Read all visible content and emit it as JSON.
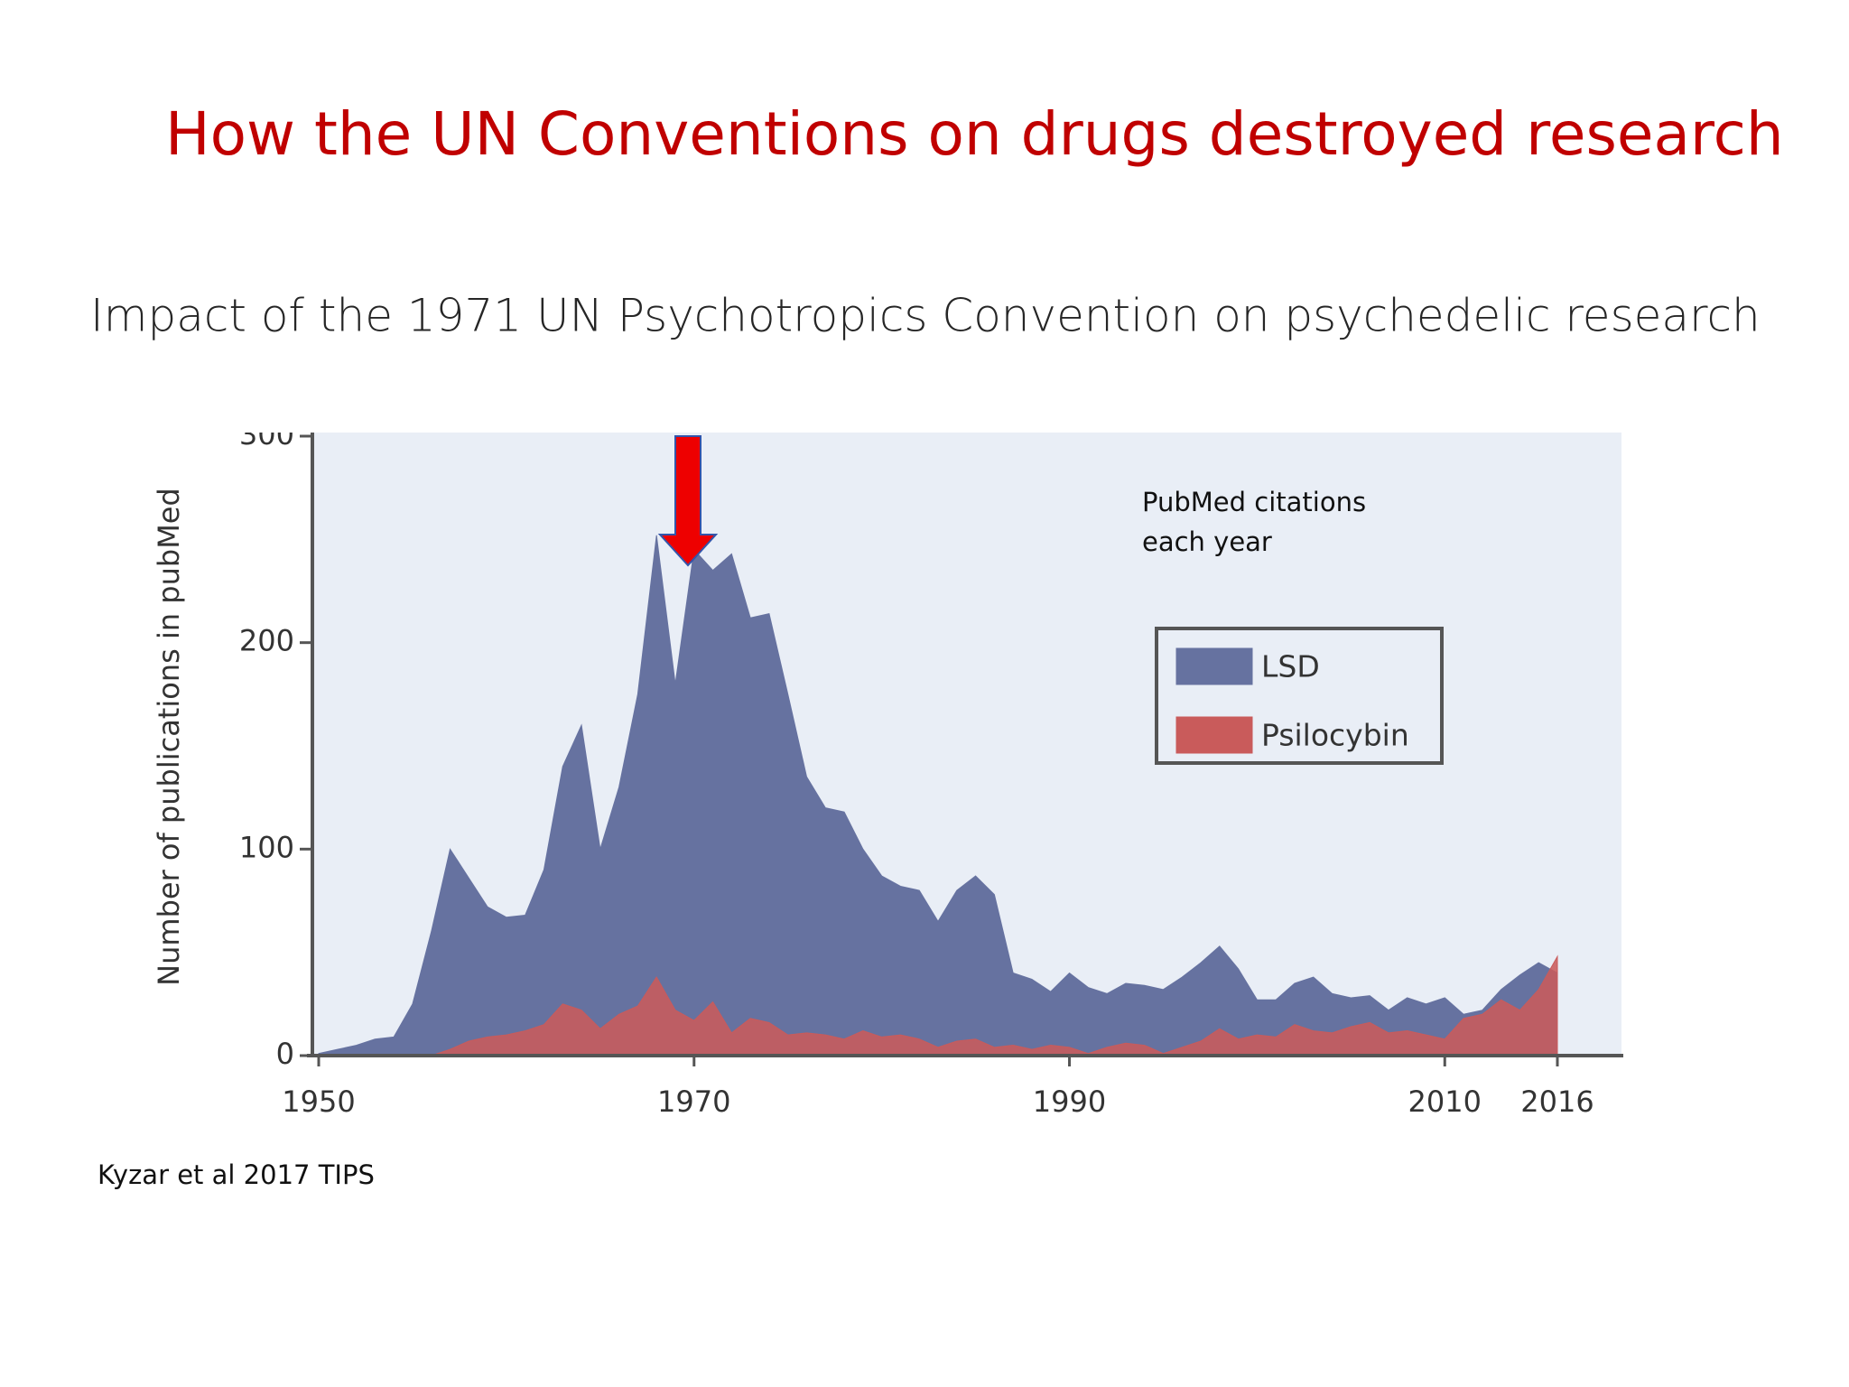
{
  "title": "How the UN Conventions on drugs destroyed research",
  "subtitle": "Impact of the 1971 UN Psychotropics Convention on psychedelic research",
  "source": "Kyzar et al 2017 TIPS",
  "chart_data": {
    "type": "area",
    "y_label": "Number of publications in pubMed",
    "annotation": [
      "PubMed citations",
      "each year"
    ],
    "x": [
      1950,
      1951,
      1952,
      1953,
      1954,
      1955,
      1956,
      1957,
      1958,
      1959,
      1960,
      1961,
      1962,
      1963,
      1964,
      1965,
      1966,
      1967,
      1968,
      1969,
      1970,
      1971,
      1972,
      1973,
      1974,
      1975,
      1976,
      1977,
      1978,
      1979,
      1980,
      1981,
      1982,
      1983,
      1984,
      1985,
      1986,
      1987,
      1988,
      1989,
      1990,
      1991,
      1992,
      1993,
      1994,
      1995,
      1996,
      1997,
      1998,
      1999,
      2000,
      2001,
      2002,
      2003,
      2004,
      2005,
      2006,
      2007,
      2008,
      2009,
      2010,
      2011,
      2012,
      2013,
      2014,
      2015,
      2016
    ],
    "series": [
      {
        "name": "LSD",
        "color": "#6672a0",
        "values": [
          1,
          3,
          5,
          8,
          9,
          25,
          60,
          100,
          86,
          72,
          67,
          68,
          90,
          140,
          160,
          100,
          130,
          175,
          252,
          180,
          245,
          235,
          243,
          212,
          214,
          175,
          135,
          120,
          118,
          100,
          87,
          82,
          80,
          65,
          80,
          87,
          78,
          40,
          37,
          31,
          40,
          33,
          30,
          35,
          34,
          32,
          38,
          45,
          53,
          42,
          27,
          27,
          35,
          38,
          30,
          28,
          29,
          22,
          28,
          25,
          28,
          20,
          22,
          32,
          39,
          45,
          40
        ]
      },
      {
        "name": "Psilocybin",
        "color": "#c95b5b",
        "values": [
          0,
          0,
          0,
          0,
          0,
          0,
          0,
          3,
          7,
          9,
          10,
          12,
          15,
          25,
          22,
          13,
          20,
          24,
          38,
          22,
          17,
          26,
          11,
          18,
          16,
          10,
          11,
          10,
          8,
          12,
          9,
          10,
          8,
          4,
          7,
          8,
          4,
          5,
          3,
          5,
          4,
          1,
          4,
          6,
          5,
          1,
          4,
          7,
          13,
          8,
          10,
          9,
          15,
          12,
          11,
          14,
          16,
          11,
          12,
          10,
          8,
          18,
          20,
          27,
          22,
          32,
          48
        ]
      }
    ],
    "xlim": [
      1950,
      2016
    ],
    "xticks": [
      1950,
      1970,
      1990,
      2010,
      2016
    ],
    "ylim": [
      0,
      300
    ],
    "yticks": [
      0,
      100,
      200,
      300
    ],
    "legend": "upper right"
  }
}
